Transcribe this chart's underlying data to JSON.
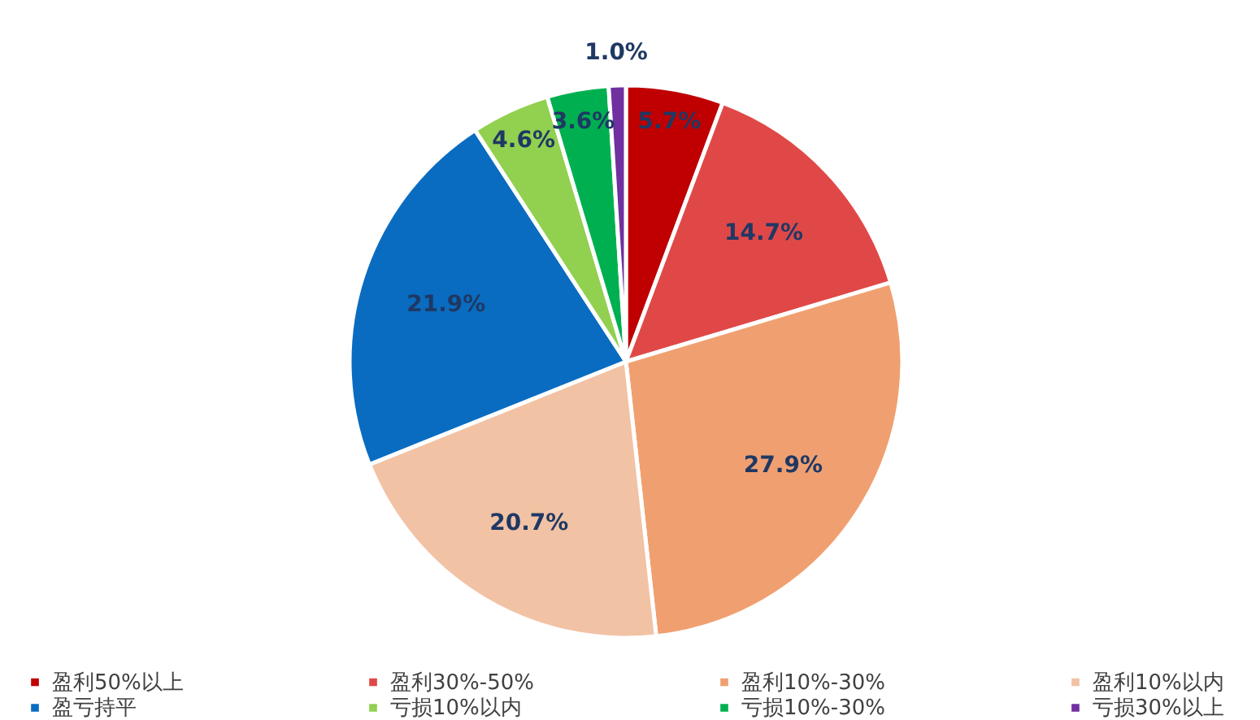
{
  "chart_data": {
    "type": "pie",
    "categories": [
      "盈利50%以上",
      "盈利30%-50%",
      "盈利10%-30%",
      "盈利10%以内",
      "盈亏持平",
      "亏损10%以内",
      "亏损10%-30%",
      "亏损30%以上"
    ],
    "values": [
      5.7,
      14.7,
      27.9,
      20.7,
      21.9,
      4.6,
      3.6,
      1.0
    ],
    "colors": [
      "#c00000",
      "#e04848",
      "#f0a070",
      "#f2c2a4",
      "#0a6cc0",
      "#92d050",
      "#00b050",
      "#7030a0"
    ],
    "value_labels": [
      "5.7%",
      "14.7%",
      "27.9%",
      "20.7%",
      "21.9%",
      "4.6%",
      "3.6%",
      "1.0%"
    ],
    "legend": "bottom"
  }
}
